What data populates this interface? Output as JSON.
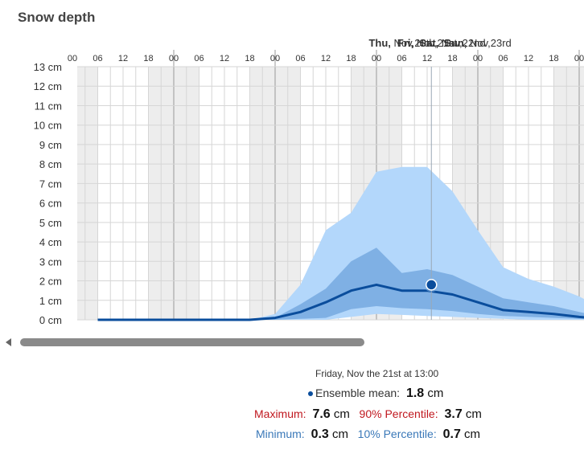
{
  "title": "Snow depth",
  "chart_data": {
    "type": "area",
    "unit": "cm",
    "ylim": [
      0,
      13
    ],
    "y_ticks": [
      "0 cm",
      "1 cm",
      "2 cm",
      "3 cm",
      "4 cm",
      "5 cm",
      "6 cm",
      "7 cm",
      "8 cm",
      "9 cm",
      "10 cm",
      "11 cm",
      "12 cm",
      "13 cm"
    ],
    "day_labels": [
      {
        "bold": "Thu,",
        "rest": " Nov,20th",
        "hour": 6
      },
      {
        "bold": "Fri,",
        "rest": " Nov,21st",
        "hour": 12
      },
      {
        "bold": "Sat,",
        "rest": " Nov,22nd",
        "hour": 18
      },
      {
        "bold": "Sun,",
        "rest": " Nov,23rd",
        "hour": 24
      }
    ],
    "hour_labels": [
      "00",
      "06",
      "12",
      "18",
      "00",
      "06",
      "12",
      "18",
      "00",
      "06",
      "12",
      "18",
      "00",
      "06",
      "12",
      "18",
      "00",
      "06",
      "12",
      "18",
      "00"
    ],
    "x_hours": [
      -66,
      -60,
      -54,
      -48,
      -42,
      -36,
      -30,
      -24,
      -18,
      -12,
      -6,
      0,
      6,
      12,
      18,
      24,
      30,
      36,
      42,
      48,
      54,
      60,
      66,
      72
    ],
    "series": [
      {
        "name": "Maximum",
        "color": "#b3d7fb",
        "values": [
          0,
          0,
          0,
          0,
          0,
          0,
          0,
          0.3,
          1.8,
          4.6,
          5.5,
          7.6,
          7.85,
          7.85,
          6.6,
          4.6,
          2.7,
          2.1,
          1.7,
          1.2,
          0.5,
          0.2,
          0,
          0
        ]
      },
      {
        "name": "90% Percentile",
        "color": "#7fb0e4",
        "values": [
          0,
          0,
          0,
          0,
          0,
          0,
          0,
          0.1,
          0.8,
          1.6,
          3.0,
          3.7,
          2.4,
          2.6,
          2.3,
          1.7,
          1.1,
          0.9,
          0.7,
          0.4,
          0.15,
          0.05,
          0,
          0
        ]
      },
      {
        "name": "10% Percentile",
        "color": "#7fb0e4",
        "values": [
          0,
          0,
          0,
          0,
          0,
          0,
          0,
          0,
          0.05,
          0.1,
          0.55,
          0.7,
          0.6,
          0.55,
          0.45,
          0.3,
          0.2,
          0.15,
          0.1,
          0.05,
          0,
          0,
          0,
          0
        ]
      },
      {
        "name": "Minimum",
        "color": "#b3d7fb",
        "values": [
          0,
          0,
          0,
          0,
          0,
          0,
          0,
          0,
          0,
          0,
          0.15,
          0.3,
          0.25,
          0.2,
          0.15,
          0.1,
          0.05,
          0,
          0,
          0,
          0,
          0,
          0,
          0
        ]
      },
      {
        "name": "Ensemble mean",
        "color": "#0a4d9c",
        "values": [
          0,
          0,
          0,
          0,
          0,
          0,
          0,
          0.1,
          0.4,
          0.9,
          1.5,
          1.8,
          1.5,
          1.5,
          1.3,
          0.9,
          0.5,
          0.4,
          0.3,
          0.15,
          0.05,
          0,
          0,
          0
        ]
      }
    ],
    "selected": {
      "hour": 13,
      "value": 1.8
    }
  },
  "tooltip": {
    "time": "Friday, Nov the 21st at 13:00",
    "mean_label": "Ensemble mean:",
    "mean_value": "1.8",
    "unit": "cm",
    "max_label": "Maximum:",
    "max_value": "7.6",
    "p90_label": "90% Percentile:",
    "p90_value": "3.7",
    "min_label": "Minimum:",
    "min_value": "0.3",
    "p10_label": "10% Percentile:",
    "p10_value": "0.7"
  }
}
